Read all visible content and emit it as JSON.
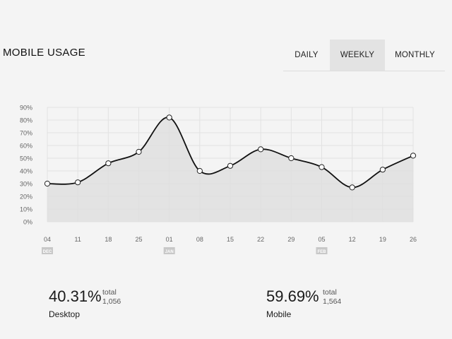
{
  "header": {
    "title": "MOBILE USAGE"
  },
  "tabs": [
    {
      "label": "DAILY",
      "selected": false
    },
    {
      "label": "WEEKLY",
      "selected": true
    },
    {
      "label": "MONTHLY",
      "selected": false
    }
  ],
  "stats": {
    "desktop": {
      "percent": "40.31%",
      "total_label": "total",
      "total_value": "1,056",
      "name": "Desktop"
    },
    "mobile": {
      "percent": "59.69%",
      "total_label": "total",
      "total_value": "1,564",
      "name": "Mobile"
    }
  },
  "colors": {
    "background": "#f4f4f4",
    "line": "#111111",
    "area": "#dedede",
    "tab_selected": "#e3e3e3",
    "month_badge": "#c8c8c8"
  },
  "chart_data": {
    "type": "area",
    "x": [
      "04",
      "11",
      "18",
      "25",
      "01",
      "08",
      "15",
      "22",
      "29",
      "05",
      "12",
      "19",
      "26"
    ],
    "month_labels": [
      {
        "index": 0,
        "label": "DEC"
      },
      {
        "index": 4,
        "label": "JAN"
      },
      {
        "index": 9,
        "label": "FEB"
      }
    ],
    "series": [
      {
        "values": [
          30,
          31,
          46,
          55,
          82,
          40,
          44,
          57,
          50,
          43,
          27,
          41,
          52
        ]
      }
    ],
    "yticks": [
      "0%",
      "10%",
      "20%",
      "30%",
      "40%",
      "50%",
      "60%",
      "70%",
      "80%",
      "90%"
    ],
    "ylim": [
      0,
      90
    ],
    "grid": true,
    "smooth": true
  }
}
